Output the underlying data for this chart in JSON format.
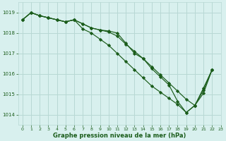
{
  "background_color": "#d8f0ee",
  "grid_color": "#b8d8d4",
  "line_color": "#1a5c1a",
  "marker_color": "#1a5c1a",
  "xlabel": "Graphe pression niveau de la mer (hPa)",
  "ylim": [
    1013.5,
    1019.5
  ],
  "xlim": [
    -0.5,
    23
  ],
  "yticks": [
    1014,
    1015,
    1016,
    1017,
    1018,
    1019
  ],
  "xticks": [
    0,
    1,
    2,
    3,
    4,
    5,
    6,
    7,
    8,
    9,
    10,
    11,
    12,
    13,
    14,
    15,
    16,
    17,
    18,
    19,
    20,
    21,
    22,
    23
  ],
  "series": [
    [
      1018.65,
      1019.0,
      1018.85,
      1018.75,
      1018.65,
      1018.55,
      1018.65,
      1018.45,
      1018.25,
      1018.15,
      1018.05,
      1017.85,
      1017.45,
      1017.1,
      1016.75,
      1016.35,
      1015.95,
      1015.55,
      1015.15,
      1014.75,
      1014.45,
      1015.05,
      1016.2
    ],
    [
      1018.65,
      1019.0,
      1018.85,
      1018.75,
      1018.65,
      1018.55,
      1018.65,
      1018.45,
      1018.25,
      1018.15,
      1018.1,
      1018.0,
      1017.5,
      1017.0,
      1016.75,
      1016.25,
      1015.85,
      1015.45,
      1014.65,
      1014.1,
      1014.45,
      1015.2,
      1016.2
    ],
    [
      1018.65,
      1019.0,
      1018.85,
      1018.75,
      1018.65,
      1018.55,
      1018.65,
      1018.2,
      1018.0,
      1017.7,
      1017.4,
      1017.0,
      1016.6,
      1016.2,
      1015.8,
      1015.4,
      1015.1,
      1014.8,
      1014.5,
      1014.1,
      1014.45,
      1015.3,
      1016.2
    ]
  ]
}
